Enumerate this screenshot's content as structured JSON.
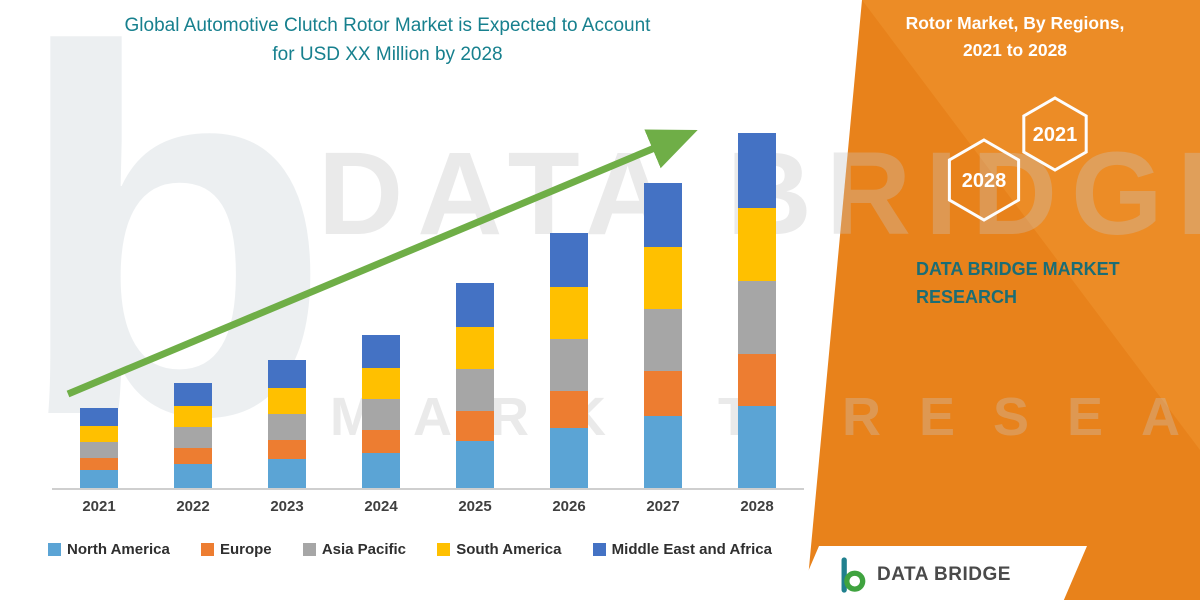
{
  "header": {
    "title_line1": "Global Automotive Clutch Rotor Market is Expected to Account",
    "title_line2": "for USD XX Million by 2028"
  },
  "side_panel": {
    "heading_line1": "Rotor Market, By Regions,",
    "heading_line2": "2021 to 2028",
    "hexagons": [
      {
        "label": "2028"
      },
      {
        "label": "2021"
      }
    ],
    "brand_line1": "DATA BRIDGE MARKET",
    "brand_line2": "RESEARCH"
  },
  "watermark": {
    "big_letter": "b",
    "line1": "DATA BRIDGE",
    "line2": "MARKET RESEARCH"
  },
  "footer": {
    "brand": "DATA BRIDGE"
  },
  "colors": {
    "panel_orange": "#E8821B",
    "panel_orange_light": "#EC8C26",
    "title_teal": "#17808E",
    "brand_teal": "#1B6D75",
    "arrow_green": "#6FAE47"
  },
  "chart_data": {
    "type": "bar",
    "stacked": true,
    "title": "Global Automotive Clutch Rotor Market is Expected to Account for USD XX Million by 2028",
    "categories": [
      "2021",
      "2022",
      "2023",
      "2024",
      "2025",
      "2026",
      "2027",
      "2028"
    ],
    "series": [
      {
        "name": "North America",
        "color": "#5BA4D5",
        "values": [
          18,
          24,
          29,
          35,
          47,
          60,
          72,
          82
        ]
      },
      {
        "name": "Europe",
        "color": "#ED7D31",
        "values": [
          12,
          16,
          19,
          23,
          30,
          37,
          45,
          52
        ]
      },
      {
        "name": "Asia Pacific",
        "color": "#A6A6A6",
        "values": [
          16,
          21,
          26,
          31,
          42,
          52,
          62,
          73
        ]
      },
      {
        "name": "South America",
        "color": "#FFC000",
        "values": [
          16,
          21,
          26,
          31,
          42,
          52,
          62,
          73
        ]
      },
      {
        "name": "Middle East and Africa",
        "color": "#4472C4",
        "values": [
          18,
          23,
          28,
          33,
          44,
          54,
          64,
          75
        ]
      }
    ],
    "xlabel": "",
    "ylabel": "",
    "ylim": [
      0,
      368
    ],
    "y_axis_visible": false,
    "gridlines": false,
    "legend_position": "bottom",
    "trend_arrow": true,
    "value_note": "No y-axis scale shown (values USD XX Million); series values estimated from relative bar heights"
  }
}
